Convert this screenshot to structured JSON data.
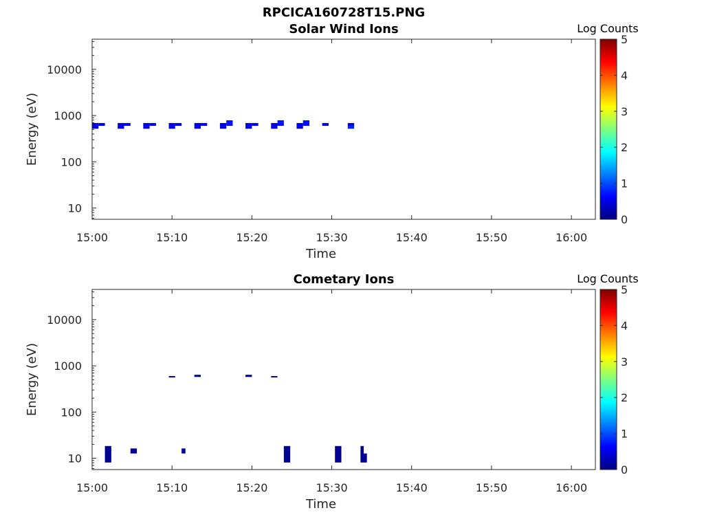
{
  "figure_title": "RPCICA160728T15.PNG",
  "colormap": "jet",
  "colormap_stops": [
    "#00007f",
    "#0000ff",
    "#007fff",
    "#00ffff",
    "#7fff7f",
    "#ffff00",
    "#ff7f00",
    "#ff0000",
    "#7f0000"
  ],
  "chart_data": [
    {
      "type": "heatmap",
      "title": "Solar Wind Ions",
      "xlabel": "Time",
      "ylabel": "Energy (eV)",
      "x_ticks": [
        "15:00",
        "15:10",
        "15:20",
        "15:30",
        "15:40",
        "15:50",
        "16:00"
      ],
      "xlim": [
        "15:00",
        "16:03"
      ],
      "y_scale": "log",
      "y_ticks": [
        "10",
        "100",
        "1000",
        "10000"
      ],
      "ylim": [
        5.7,
        45000
      ],
      "colorbar": {
        "label": "Log Counts",
        "ticks": [
          "0",
          "1",
          "2",
          "3",
          "4",
          "5"
        ],
        "range": [
          0,
          5
        ]
      },
      "grid": false,
      "cells": [
        {
          "t0": "15:00:00",
          "t1": "15:00:48",
          "e0": 520,
          "e1": 600,
          "log_counts": 0.5
        },
        {
          "t0": "15:00:00",
          "t1": "15:00:48",
          "e0": 600,
          "e1": 690,
          "log_counts": 0.5
        },
        {
          "t0": "15:00:48",
          "t1": "15:01:36",
          "e0": 600,
          "e1": 690,
          "log_counts": 0.6
        },
        {
          "t0": "15:03:12",
          "t1": "15:04:00",
          "e0": 520,
          "e1": 600,
          "log_counts": 0.5
        },
        {
          "t0": "15:03:12",
          "t1": "15:04:00",
          "e0": 600,
          "e1": 690,
          "log_counts": 0.5
        },
        {
          "t0": "15:04:00",
          "t1": "15:04:48",
          "e0": 600,
          "e1": 690,
          "log_counts": 0.6
        },
        {
          "t0": "15:06:24",
          "t1": "15:07:12",
          "e0": 520,
          "e1": 600,
          "log_counts": 0.5
        },
        {
          "t0": "15:06:24",
          "t1": "15:07:12",
          "e0": 600,
          "e1": 690,
          "log_counts": 0.5
        },
        {
          "t0": "15:07:12",
          "t1": "15:08:00",
          "e0": 600,
          "e1": 690,
          "log_counts": 0.6
        },
        {
          "t0": "15:09:36",
          "t1": "15:10:24",
          "e0": 520,
          "e1": 600,
          "log_counts": 0.5
        },
        {
          "t0": "15:09:36",
          "t1": "15:10:24",
          "e0": 600,
          "e1": 690,
          "log_counts": 0.5
        },
        {
          "t0": "15:10:24",
          "t1": "15:11:12",
          "e0": 600,
          "e1": 690,
          "log_counts": 0.6
        },
        {
          "t0": "15:12:48",
          "t1": "15:13:36",
          "e0": 520,
          "e1": 600,
          "log_counts": 0.5
        },
        {
          "t0": "15:12:48",
          "t1": "15:13:36",
          "e0": 600,
          "e1": 690,
          "log_counts": 0.5
        },
        {
          "t0": "15:13:36",
          "t1": "15:14:24",
          "e0": 600,
          "e1": 690,
          "log_counts": 0.6
        },
        {
          "t0": "15:16:00",
          "t1": "15:16:48",
          "e0": 520,
          "e1": 600,
          "log_counts": 0.5
        },
        {
          "t0": "15:16:00",
          "t1": "15:16:48",
          "e0": 600,
          "e1": 690,
          "log_counts": 0.5
        },
        {
          "t0": "15:16:48",
          "t1": "15:17:36",
          "e0": 600,
          "e1": 690,
          "log_counts": 0.7
        },
        {
          "t0": "15:16:48",
          "t1": "15:17:36",
          "e0": 690,
          "e1": 790,
          "log_counts": 0.7
        },
        {
          "t0": "15:19:12",
          "t1": "15:20:00",
          "e0": 520,
          "e1": 600,
          "log_counts": 0.5
        },
        {
          "t0": "15:19:12",
          "t1": "15:20:00",
          "e0": 600,
          "e1": 690,
          "log_counts": 0.5
        },
        {
          "t0": "15:20:00",
          "t1": "15:20:48",
          "e0": 600,
          "e1": 690,
          "log_counts": 0.6
        },
        {
          "t0": "15:22:24",
          "t1": "15:23:12",
          "e0": 520,
          "e1": 600,
          "log_counts": 0.5
        },
        {
          "t0": "15:22:24",
          "t1": "15:23:12",
          "e0": 600,
          "e1": 690,
          "log_counts": 0.5
        },
        {
          "t0": "15:23:12",
          "t1": "15:24:00",
          "e0": 600,
          "e1": 690,
          "log_counts": 0.7
        },
        {
          "t0": "15:23:12",
          "t1": "15:24:00",
          "e0": 690,
          "e1": 790,
          "log_counts": 0.7
        },
        {
          "t0": "15:25:36",
          "t1": "15:26:24",
          "e0": 520,
          "e1": 600,
          "log_counts": 0.5
        },
        {
          "t0": "15:25:36",
          "t1": "15:26:24",
          "e0": 600,
          "e1": 690,
          "log_counts": 0.5
        },
        {
          "t0": "15:26:24",
          "t1": "15:27:12",
          "e0": 600,
          "e1": 690,
          "log_counts": 0.7
        },
        {
          "t0": "15:26:24",
          "t1": "15:27:12",
          "e0": 690,
          "e1": 790,
          "log_counts": 0.7
        },
        {
          "t0": "15:28:48",
          "t1": "15:29:36",
          "e0": 600,
          "e1": 690,
          "log_counts": 0.5
        },
        {
          "t0": "15:32:00",
          "t1": "15:32:48",
          "e0": 520,
          "e1": 600,
          "log_counts": 0.8
        },
        {
          "t0": "15:32:00",
          "t1": "15:32:48",
          "e0": 600,
          "e1": 690,
          "log_counts": 0.5
        }
      ]
    },
    {
      "type": "heatmap",
      "title": "Cometary Ions",
      "xlabel": "Time",
      "ylabel": "Energy (eV)",
      "x_ticks": [
        "15:00",
        "15:10",
        "15:20",
        "15:30",
        "15:40",
        "15:50",
        "16:00"
      ],
      "xlim": [
        "15:00",
        "16:03"
      ],
      "y_scale": "log",
      "y_ticks": [
        "10",
        "100",
        "1000",
        "10000"
      ],
      "ylim": [
        5.7,
        45000
      ],
      "colorbar": {
        "label": "Log Counts",
        "ticks": [
          "0",
          "1",
          "2",
          "3",
          "4",
          "5"
        ],
        "range": [
          0,
          5
        ]
      },
      "grid": false,
      "cells": [
        {
          "t0": "15:01:36",
          "t1": "15:02:24",
          "e0": 8.1,
          "e1": 18.4,
          "log_counts": 0.1
        },
        {
          "t0": "15:04:48",
          "t1": "15:05:36",
          "e0": 12.7,
          "e1": 16.3,
          "log_counts": 0.15
        },
        {
          "t0": "15:09:36",
          "t1": "15:10:24",
          "e0": 560,
          "e1": 600,
          "log_counts": 0.1
        },
        {
          "t0": "15:11:12",
          "t1": "15:11:41",
          "e0": 12.7,
          "e1": 16.3,
          "log_counts": 0.15
        },
        {
          "t0": "15:12:48",
          "t1": "15:13:36",
          "e0": 575,
          "e1": 640,
          "log_counts": 0.1
        },
        {
          "t0": "15:19:12",
          "t1": "15:20:00",
          "e0": 575,
          "e1": 640,
          "log_counts": 0.1
        },
        {
          "t0": "15:22:24",
          "t1": "15:23:12",
          "e0": 560,
          "e1": 600,
          "log_counts": 0.1
        },
        {
          "t0": "15:24:00",
          "t1": "15:24:48",
          "e0": 8.1,
          "e1": 18.4,
          "log_counts": 0.1
        },
        {
          "t0": "15:30:24",
          "t1": "15:31:12",
          "e0": 8.1,
          "e1": 18.4,
          "log_counts": 0.1
        },
        {
          "t0": "15:33:36",
          "t1": "15:34:00",
          "e0": 8.1,
          "e1": 18.4,
          "log_counts": 0.1
        },
        {
          "t0": "15:34:00",
          "t1": "15:34:24",
          "e0": 8.1,
          "e1": 12.7,
          "log_counts": 0.1
        }
      ]
    }
  ]
}
